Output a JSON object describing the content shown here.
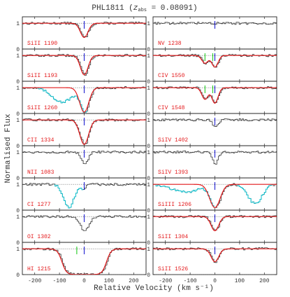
{
  "title_main": "PHL1811 (",
  "title_z": "z",
  "title_sub": "abs",
  "title_val": " = 0.08091)",
  "xlabel": "Relative Velocity (km s⁻¹)",
  "ylabel": "Normalised Flux",
  "colors": {
    "data": "#333333",
    "model": "#e41a1c",
    "label": "#e41a1c",
    "blend": "#00c8d7",
    "marker_blue": "#1f1fd1",
    "marker_green": "#22cc22",
    "dotted": "#555555"
  },
  "chart_data": {
    "type": "line",
    "xlim": [
      -250,
      250
    ],
    "ylim": [
      0,
      1.25
    ],
    "x_ticks": [
      -200,
      -100,
      0,
      100,
      200
    ],
    "y_ticks": [
      0,
      1
    ],
    "panels": [
      {
        "label": "SiII 1190",
        "col": 0,
        "row": 0,
        "fit": true,
        "comps": [
          {
            "v": 0,
            "d": 0.55,
            "w": 22
          }
        ],
        "blend": null,
        "green": []
      },
      {
        "label": "SiII 1193",
        "col": 0,
        "row": 1,
        "fit": true,
        "comps": [
          {
            "v": 0,
            "d": 0.75,
            "w": 22
          }
        ],
        "blend": null,
        "green": []
      },
      {
        "label": "SiII 1260",
        "col": 0,
        "row": 2,
        "fit": true,
        "comps": [
          {
            "v": 0,
            "d": 0.95,
            "w": 26
          }
        ],
        "blend": {
          "v": -90,
          "d": 0.55,
          "w": 60
        },
        "green": []
      },
      {
        "label": "CII 1334",
        "col": 0,
        "row": 3,
        "fit": true,
        "comps": [
          {
            "v": 0,
            "d": 0.95,
            "w": 25
          }
        ],
        "blend": null,
        "green": []
      },
      {
        "label": "NII 1083",
        "col": 0,
        "row": 4,
        "fit": false,
        "comps": [
          {
            "v": 0,
            "d": 0.5,
            "w": 18
          }
        ],
        "blend": null,
        "green": []
      },
      {
        "label": "CI 1277",
        "col": 0,
        "row": 5,
        "fit": false,
        "comps": [
          {
            "v": -5,
            "d": 0.15,
            "w": 15
          }
        ],
        "blend": {
          "v": -65,
          "d": 0.9,
          "w": 30
        },
        "green": []
      },
      {
        "label": "OI 1302",
        "col": 0,
        "row": 6,
        "fit": false,
        "comps": [
          {
            "v": 0,
            "d": 0.55,
            "w": 25
          }
        ],
        "blend": null,
        "green": []
      },
      {
        "label": "HI 1215",
        "col": 0,
        "row": 7,
        "fit": true,
        "damped": true,
        "comps": [
          {
            "v": 0,
            "d": 1.0,
            "w": 110
          }
        ],
        "blend": null,
        "green": [
          -30
        ]
      },
      {
        "label": "NV 1238",
        "col": 1,
        "row": 0,
        "fit": false,
        "comps": [],
        "blend": null,
        "green": []
      },
      {
        "label": "CIV 1550",
        "col": 1,
        "row": 1,
        "fit": true,
        "comps": [
          {
            "v": -40,
            "d": 0.3,
            "w": 18
          },
          {
            "v": 0,
            "d": 0.45,
            "w": 18
          }
        ],
        "blend": null,
        "green": [
          -40,
          0
        ]
      },
      {
        "label": "CIV 1548",
        "col": 1,
        "row": 2,
        "fit": true,
        "comps": [
          {
            "v": -40,
            "d": 0.45,
            "w": 18
          },
          {
            "v": 0,
            "d": 0.6,
            "w": 18
          }
        ],
        "blend": null,
        "green": [
          -40,
          0
        ]
      },
      {
        "label": "SiIV 1402",
        "col": 1,
        "row": 3,
        "fit": false,
        "comps": [
          {
            "v": 0,
            "d": 0.3,
            "w": 15
          }
        ],
        "blend": null,
        "green": []
      },
      {
        "label": "SiIV 1393",
        "col": 1,
        "row": 4,
        "fit": false,
        "comps": [
          {
            "v": 0,
            "d": 0.45,
            "w": 15
          }
        ],
        "blend": null,
        "green": []
      },
      {
        "label": "SiIII 1206",
        "col": 1,
        "row": 5,
        "fit": true,
        "comps": [
          {
            "v": 0,
            "d": 0.9,
            "w": 30
          }
        ],
        "blend": {
          "v": 160,
          "d": 0.75,
          "w": 40
        },
        "blend2": {
          "v": -120,
          "d": 0.3,
          "w": 80
        },
        "green": []
      },
      {
        "label": "SiII 1304",
        "col": 1,
        "row": 6,
        "fit": true,
        "comps": [
          {
            "v": 0,
            "d": 0.55,
            "w": 22
          }
        ],
        "blend": null,
        "green": []
      },
      {
        "label": "SiII 1526",
        "col": 1,
        "row": 7,
        "fit": true,
        "comps": [
          {
            "v": 0,
            "d": 0.5,
            "w": 22
          }
        ],
        "blend": null,
        "green": []
      }
    ]
  }
}
